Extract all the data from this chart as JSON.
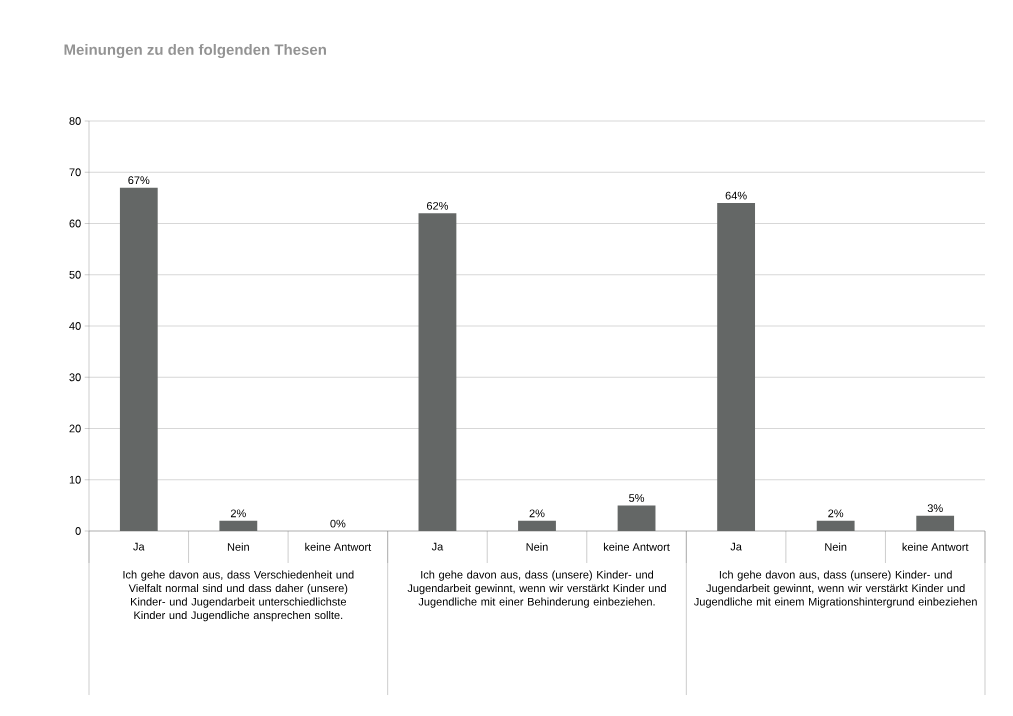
{
  "chart_data": {
    "type": "bar",
    "title": "Meinungen zu den folgenden Thesen",
    "categories": [
      "Ja",
      "Nein",
      "keine Antwort",
      "Ja",
      "Nein",
      "keine Antwort",
      "Ja",
      "Nein",
      "keine Antwort"
    ],
    "values": [
      67,
      2,
      0,
      62,
      2,
      5,
      64,
      2,
      3
    ],
    "value_labels": [
      "67%",
      "2%",
      "0%",
      "62%",
      "2%",
      "5%",
      "64%",
      "2%",
      "3%"
    ],
    "color": "#646766",
    "ylim": [
      0,
      80
    ],
    "yticks": [
      0,
      10,
      20,
      30,
      40,
      50,
      60,
      70,
      80
    ],
    "grid": "y",
    "annotations": [
      "Ich gehe davon aus, dass Verschiedenheit und Vielfalt normal sind und dass daher (unsere) Kinder- und Jugendarbeit unterschiedlichste Kinder und Jugendliche ansprechen sollte.",
      "Ich gehe davon aus, dass (unsere) Kinder- und Jugendarbeit gewinnt, wenn wir verstärkt Kinder und Jugendliche mit einer Behinderung einbeziehen.",
      "Ich gehe davon aus, dass (unsere) Kinder- und Jugendarbeit gewinnt, wenn wir verstärkt Kinder und Jugendliche mit einem Migrationshintergrund einbeziehen"
    ]
  }
}
